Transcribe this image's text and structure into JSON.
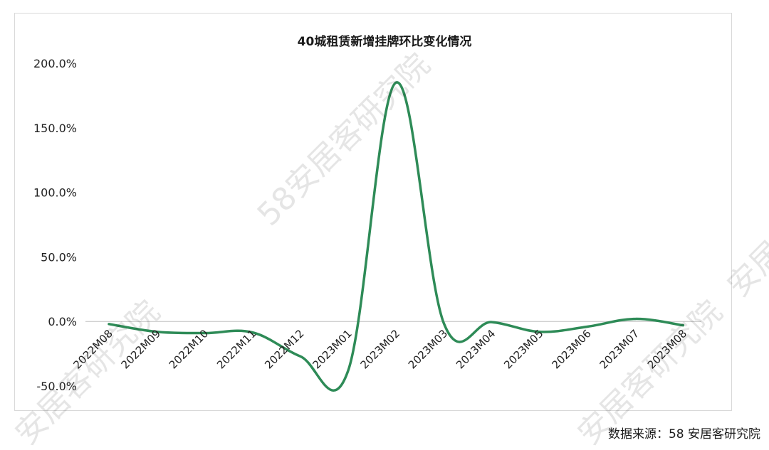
{
  "chart_data": {
    "type": "line",
    "title": "40城租赁新增挂牌环比变化情况",
    "categories": [
      "2022M08",
      "2022M09",
      "2022M10",
      "2022M11",
      "2022M12",
      "2023M01",
      "2023M02",
      "2023M03",
      "2023M04",
      "2023M05",
      "2023M06",
      "2023M07",
      "2023M08"
    ],
    "series": [
      {
        "values": [
          -2.0,
          -8.0,
          -9.0,
          -8.5,
          -27.0,
          -38.0,
          185.0,
          -1.5,
          -0.5,
          -8.0,
          -4.0,
          2.0,
          -3.0
        ]
      }
    ],
    "y_ticks": [
      "200.0%",
      "150.0%",
      "100.0%",
      "50.0%",
      "0.0%",
      "-50.0%"
    ],
    "ylim": [
      -50,
      200
    ],
    "grid": false,
    "line_color": "#2e8b57",
    "xlabel": "",
    "ylabel": ""
  },
  "source_note": "数据来源：58 安居客研究院",
  "watermarks": [
    "58安居客研究院",
    "安居客研究院",
    "安居客研究院",
    "安居客研究院"
  ]
}
